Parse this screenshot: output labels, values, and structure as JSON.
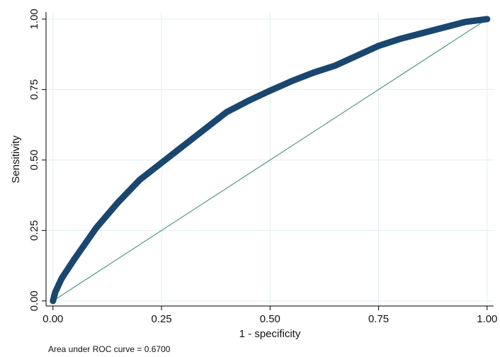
{
  "chart_data": {
    "type": "line",
    "xlabel": "1 - specificity",
    "ylabel": "Sensitivity",
    "annotation": "Area under ROC curve = 0.6700",
    "xlim": [
      -0.016,
      1.015
    ],
    "ylim": [
      -0.018,
      1.025
    ],
    "xticks": [
      {
        "value": 0,
        "label": "0.00"
      },
      {
        "value": 0.25,
        "label": "0.25"
      },
      {
        "value": 0.5,
        "label": "0.50"
      },
      {
        "value": 0.75,
        "label": "0.75"
      },
      {
        "value": 1,
        "label": "1.00"
      }
    ],
    "yticks": [
      {
        "value": 0,
        "label": "0.00"
      },
      {
        "value": 0.25,
        "label": "0.25"
      },
      {
        "value": 0.5,
        "label": "0.50"
      },
      {
        "value": 0.75,
        "label": "0.75"
      },
      {
        "value": 1,
        "label": "1.00"
      }
    ],
    "grid": true,
    "series": [
      {
        "color": "#1a476f",
        "width": 9,
        "x": [
          0,
          0.005,
          0.02,
          0.05,
          0.1,
          0.15,
          0.2,
          0.25,
          0.3,
          0.35,
          0.4,
          0.45,
          0.5,
          0.55,
          0.6,
          0.65,
          0.7,
          0.75,
          0.8,
          0.85,
          0.9,
          0.95,
          1
        ],
        "values": [
          0,
          0.03,
          0.08,
          0.15,
          0.26,
          0.35,
          0.43,
          0.49,
          0.55,
          0.61,
          0.67,
          0.71,
          0.746,
          0.78,
          0.81,
          0.835,
          0.87,
          0.905,
          0.93,
          0.95,
          0.97,
          0.99,
          1
        ]
      },
      {
        "color": "#5f9e8f",
        "width": 1.3,
        "x": [
          0,
          1
        ],
        "values": [
          0,
          1
        ]
      }
    ]
  }
}
